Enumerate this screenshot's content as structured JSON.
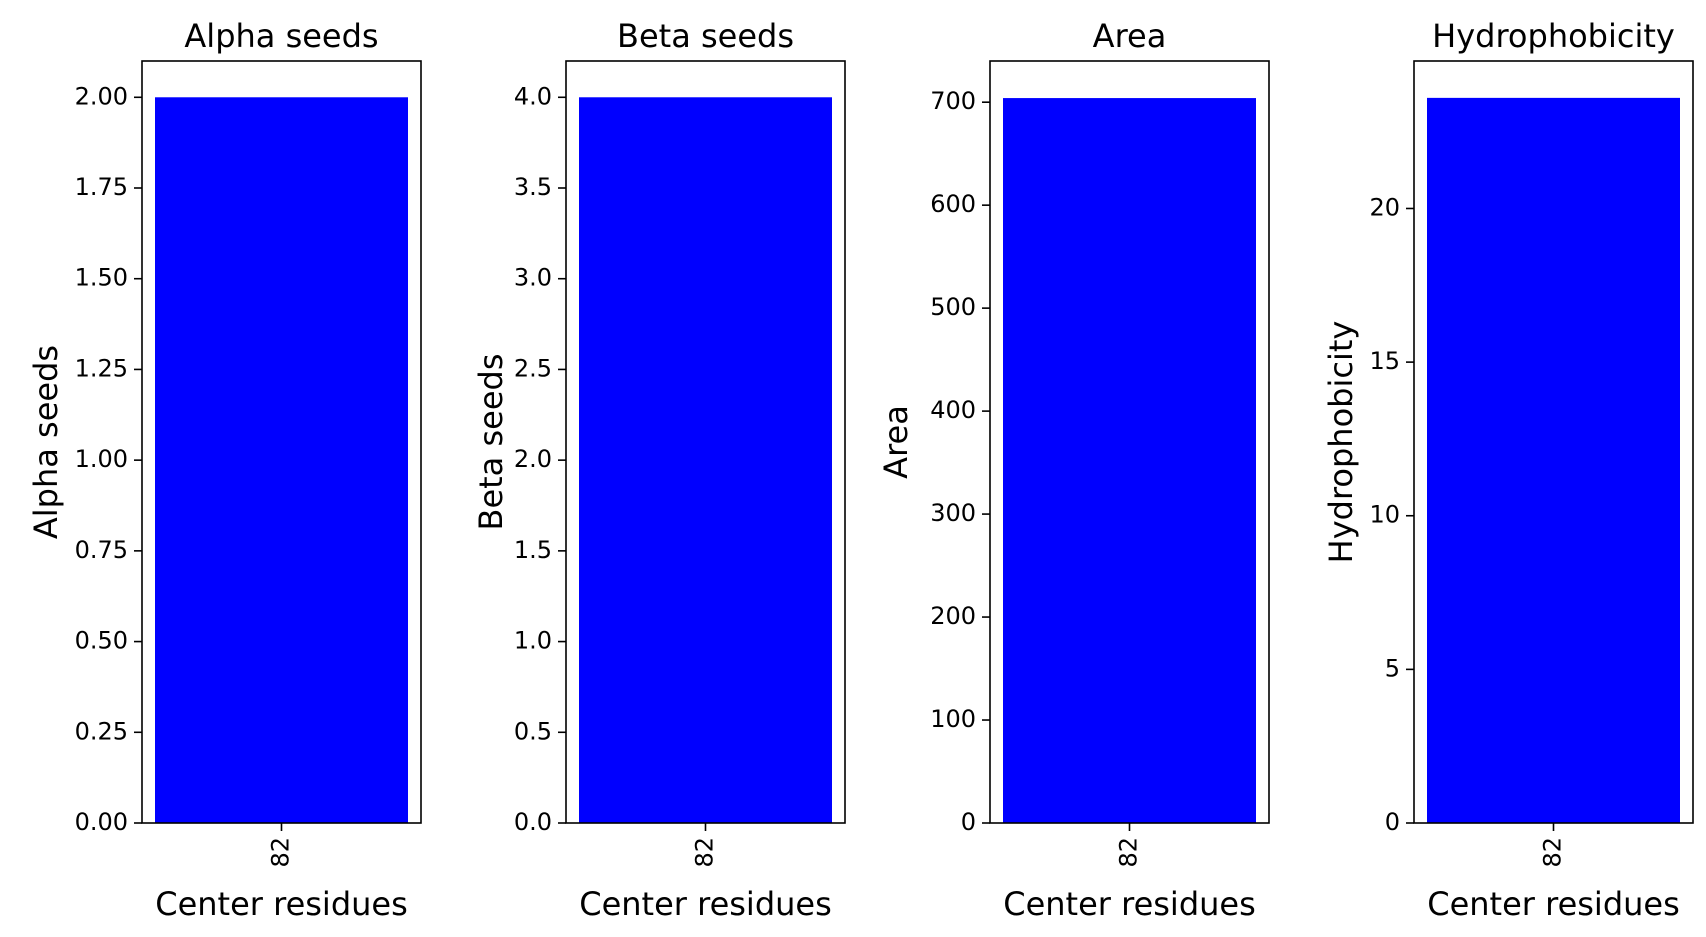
{
  "colors": {
    "bar": "#0000ff",
    "axis": "#000000",
    "background": "#ffffff"
  },
  "chart_data": [
    {
      "type": "bar",
      "title": "Alpha seeds",
      "xlabel": "Center residues",
      "ylabel": "Alpha seeds",
      "categories": [
        "82"
      ],
      "values": [
        2
      ],
      "ylim": [
        0,
        2.1
      ],
      "yticks": [
        0,
        0.25,
        0.5,
        0.75,
        1.0,
        1.25,
        1.5,
        1.75,
        2.0
      ],
      "ytick_labels": [
        "0.00",
        "0.25",
        "0.50",
        "0.75",
        "1.00",
        "1.25",
        "1.50",
        "1.75",
        "2.00"
      ],
      "grid": false,
      "legend": "none"
    },
    {
      "type": "bar",
      "title": "Beta seeds",
      "xlabel": "Center residues",
      "ylabel": "Beta seeds",
      "categories": [
        "82"
      ],
      "values": [
        4
      ],
      "ylim": [
        0,
        4.2
      ],
      "yticks": [
        0,
        0.5,
        1.0,
        1.5,
        2.0,
        2.5,
        3.0,
        3.5,
        4.0
      ],
      "ytick_labels": [
        "0.0",
        "0.5",
        "1.0",
        "1.5",
        "2.0",
        "2.5",
        "3.0",
        "3.5",
        "4.0"
      ],
      "grid": false,
      "legend": "none"
    },
    {
      "type": "bar",
      "title": "Area",
      "xlabel": "Center residues",
      "ylabel": "Area",
      "categories": [
        "82"
      ],
      "values": [
        704
      ],
      "ylim": [
        0,
        740
      ],
      "yticks": [
        0,
        100,
        200,
        300,
        400,
        500,
        600,
        700
      ],
      "ytick_labels": [
        "0",
        "100",
        "200",
        "300",
        "400",
        "500",
        "600",
        "700"
      ],
      "grid": false,
      "legend": "none"
    },
    {
      "type": "bar",
      "title": "Hydrophobicity",
      "xlabel": "Center residues",
      "ylabel": "Hydrophobicity",
      "categories": [
        "82"
      ],
      "values": [
        23.6
      ],
      "ylim": [
        0,
        24.8
      ],
      "yticks": [
        0,
        5,
        10,
        15,
        20
      ],
      "ytick_labels": [
        "0",
        "5",
        "10",
        "15",
        "20"
      ],
      "grid": false,
      "legend": "none"
    }
  ]
}
